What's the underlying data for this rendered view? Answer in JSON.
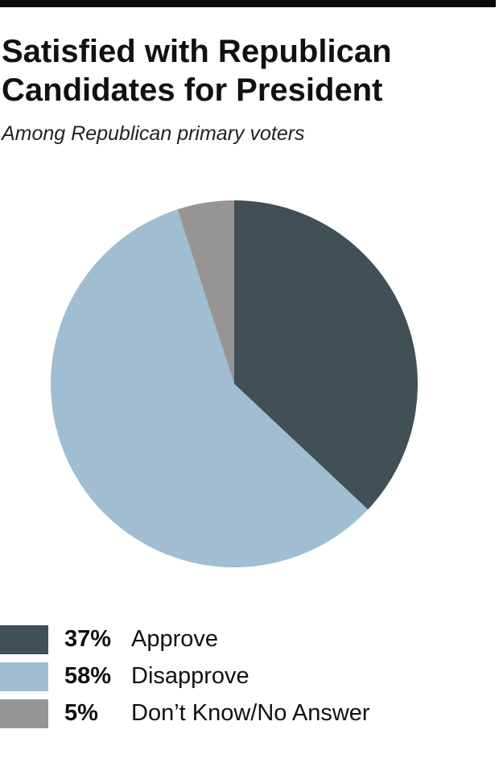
{
  "title": "Satisfied with Republican\nCandidates for President",
  "subtitle": "Among Republican primary voters",
  "colors": {
    "approve": "#414f57",
    "disapprove": "#a0bdd1",
    "dont_know": "#959595"
  },
  "chart_data": {
    "type": "pie",
    "title": "Satisfied with Republican Candidates for President",
    "subtitle": "Among Republican primary voters",
    "categories": [
      "Approve",
      "Disapprove",
      "Don’t Know/No Answer"
    ],
    "values": [
      37,
      58,
      5
    ],
    "value_labels": [
      "37%",
      "58%",
      "5%"
    ],
    "colors": [
      "#414f57",
      "#a0bdd1",
      "#959595"
    ],
    "start": "12 o'clock",
    "direction": "clockwise",
    "legend_position": "bottom-left"
  }
}
